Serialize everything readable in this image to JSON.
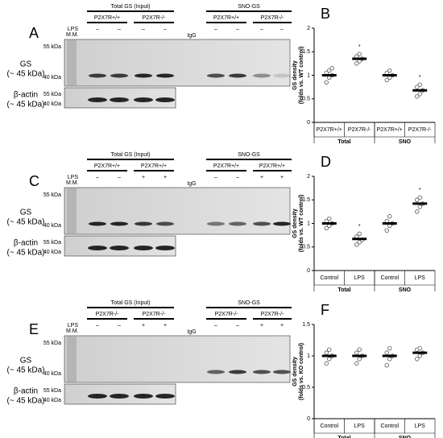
{
  "blots": [
    {
      "letter": "A",
      "lps_label": "LPS",
      "mm": "M.M.",
      "igg": "IgG",
      "groups": [
        {
          "label": "Total GS (Input)",
          "sub": [
            "P2X7R+/+",
            "P2X7R-/-"
          ]
        },
        {
          "label": "SNO-GS",
          "sub": [
            "P2X7R+/+",
            "P2X7R-/-"
          ]
        }
      ],
      "lps": [
        "–",
        "–",
        "–",
        "–",
        "–",
        "–",
        "–",
        "–"
      ],
      "gs_label": [
        "GS",
        "(~ 45 kDa)"
      ],
      "actin_label": [
        "β-actin",
        "(~ 45 kDa)"
      ],
      "kda": [
        "55 kDa",
        "40 kDa",
        "55 kDa",
        "40 kDa"
      ]
    },
    {
      "letter": "C",
      "lps_label": "LPS",
      "mm": "M.M.",
      "igg": "IgG",
      "groups": [
        {
          "label": "Total GS (Input)",
          "sub": [
            "P2X7R+/+",
            "P2X7R+/+"
          ]
        },
        {
          "label": "SNO-GS",
          "sub": [
            "P2X7R+/+",
            "P2X7R+/+"
          ]
        }
      ],
      "lps": [
        "–",
        "–",
        "+",
        "+",
        "–",
        "–",
        "+",
        "+"
      ],
      "gs_label": [
        "GS",
        "(~ 45 kDa)"
      ],
      "actin_label": [
        "β-actin",
        "(~ 45 kDa)"
      ],
      "kda": [
        "55 kDa",
        "40 kDa",
        "55 kDa",
        "40 kDa"
      ]
    },
    {
      "letter": "E",
      "lps_label": "LPS",
      "mm": "M.M.",
      "igg": "IgG",
      "groups": [
        {
          "label": "Total GS (Input)",
          "sub": [
            "P2X7R-/-",
            "P2X7R-/-"
          ]
        },
        {
          "label": "SNO-GS",
          "sub": [
            "P2X7R-/-",
            "P2X7R-/-"
          ]
        }
      ],
      "lps": [
        "–",
        "–",
        "+",
        "+",
        "–",
        "–",
        "+",
        "+"
      ],
      "gs_label": [
        "GS",
        "(~ 45 kDa)"
      ],
      "actin_label": [
        "β-actin",
        "(~ 45 kDa)"
      ],
      "kda": [
        "55 kDa",
        "40 kDa",
        "55 kDa",
        "40 kDa"
      ]
    }
  ],
  "chart_data": [
    {
      "type": "scatter",
      "letter": "B",
      "ylabel": [
        "GS density",
        "(folds vs. WT control)"
      ],
      "categories": [
        "P2X7R+/+",
        "P2X7R-/-",
        "P2X7R+/+",
        "P2X7R-/-"
      ],
      "groups": [
        "Total",
        "SNO"
      ],
      "values": [
        1.0,
        1.35,
        1.0,
        0.68
      ],
      "points": [
        [
          0.85,
          0.95,
          1.0,
          1.05,
          1.1,
          1.15
        ],
        [
          1.25,
          1.3,
          1.35,
          1.4,
          1.45
        ],
        [
          0.9,
          0.95,
          1.0,
          1.05,
          1.1
        ],
        [
          0.55,
          0.6,
          0.68,
          0.75,
          0.8
        ]
      ],
      "significance": [
        null,
        "*",
        null,
        "*"
      ],
      "ylim": [
        0,
        2
      ],
      "yticks": [
        0,
        0.5,
        1,
        1.5,
        2
      ]
    },
    {
      "type": "scatter",
      "letter": "D",
      "ylabel": [
        "GS density",
        "(folds vs. WT control)"
      ],
      "categories": [
        "Control",
        "LPS",
        "Control",
        "LPS"
      ],
      "groups": [
        "Total",
        "SNO"
      ],
      "values": [
        1.0,
        0.67,
        1.0,
        1.42
      ],
      "points": [
        [
          0.9,
          0.95,
          1.0,
          1.05,
          1.1
        ],
        [
          0.55,
          0.6,
          0.65,
          0.72,
          0.78
        ],
        [
          0.85,
          0.95,
          1.0,
          1.05,
          1.15
        ],
        [
          1.25,
          1.35,
          1.42,
          1.5,
          1.55
        ]
      ],
      "significance": [
        null,
        "*",
        null,
        "*"
      ],
      "ylim": [
        0,
        2
      ],
      "yticks": [
        0,
        0.5,
        1,
        1.5,
        2
      ]
    },
    {
      "type": "scatter",
      "letter": "F",
      "ylabel": [
        "GS density",
        "(folds vs. KO control)"
      ],
      "categories": [
        "Control",
        "LPS",
        "Control",
        "LPS"
      ],
      "groups": [
        "Total",
        "SNO"
      ],
      "values": [
        1.0,
        1.0,
        1.0,
        1.05
      ],
      "points": [
        [
          0.88,
          0.95,
          1.0,
          1.05,
          1.1
        ],
        [
          0.88,
          0.95,
          1.0,
          1.05,
          1.1
        ],
        [
          0.85,
          0.95,
          1.0,
          1.05,
          1.12
        ],
        [
          0.95,
          1.0,
          1.05,
          1.1,
          1.12
        ]
      ],
      "significance": [
        null,
        null,
        null,
        null
      ],
      "ylim": [
        0,
        1.5
      ],
      "yticks": [
        0,
        0.5,
        1,
        1.5
      ]
    }
  ]
}
